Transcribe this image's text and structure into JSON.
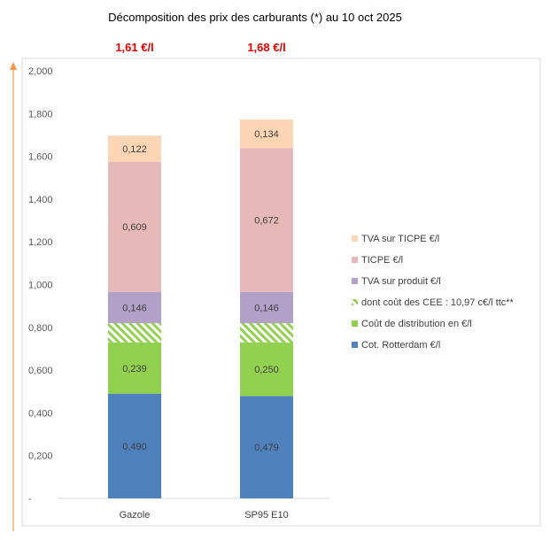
{
  "chart_data": {
    "type": "stacked-bar",
    "title": "Décomposition des prix des carburants (*) au 10 oct 2025",
    "categories": [
      "Gazole",
      "SP95 E10"
    ],
    "totals_labels": [
      "1,61 €/l",
      "1,68 €/l"
    ],
    "total_label_color": "#e00000",
    "ylim": [
      0,
      2.0
    ],
    "yticks": [
      "-",
      "0,200",
      "0,400",
      "0,600",
      "0,800",
      "1,000",
      "1,200",
      "1,400",
      "1,600",
      "1,800",
      "2,000"
    ],
    "grid": false,
    "legend_position": "right",
    "series": [
      {
        "name": "Cot. Rotterdam €/l",
        "color": "#4f81bd",
        "values": [
          0.49,
          0.479
        ],
        "labels": [
          "0,490",
          "0,479"
        ]
      },
      {
        "name": "Coût de distribution en €/l",
        "color": "#92d050",
        "values": [
          0.239,
          0.25
        ],
        "labels": [
          "0,239",
          "0,250"
        ]
      },
      {
        "name": "dont coût des CEE : 10,97 c€/l ttc**",
        "color": "#92d050",
        "hatched": true,
        "values": [
          0.091,
          0.091
        ],
        "labels": [
          "",
          ""
        ]
      },
      {
        "name": "TVA sur produit €/l",
        "color": "#b1a0c7",
        "values": [
          0.146,
          0.146
        ],
        "labels": [
          "0,146",
          "0,146"
        ]
      },
      {
        "name": "TICPE €/l",
        "color": "#e6b9b8",
        "values": [
          0.609,
          0.672
        ],
        "labels": [
          "0,609",
          "0,672"
        ]
      },
      {
        "name": "TVA sur TICPE €/l",
        "color": "#fcd5b4",
        "values": [
          0.122,
          0.134
        ],
        "labels": [
          "0,122",
          "0,134"
        ]
      }
    ]
  }
}
